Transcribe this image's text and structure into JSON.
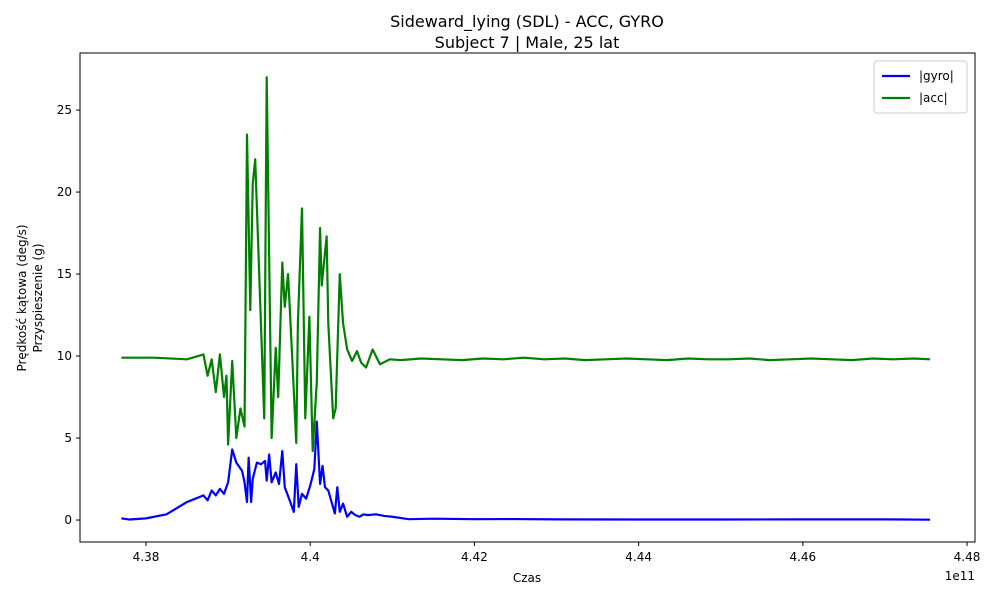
{
  "chart_data": {
    "type": "line",
    "title": "Sideward_lying (SDL) - ACC, GYRO",
    "subtitle": "Subject 7 | Male, 25 lat",
    "xlabel": "Czas",
    "x_offset_label": "1e11",
    "ylabel": [
      "Prędkość kątowa (deg/s)",
      "Przyspieszenie (g)"
    ],
    "xlim": [
      4.37196,
      4.48097
    ],
    "xticks": [
      4.38,
      4.4,
      4.42,
      4.44,
      4.46,
      4.48
    ],
    "ylim": [
      -1.34,
      28.48
    ],
    "yticks": [
      0,
      5,
      10,
      15,
      20,
      25
    ],
    "legend": "upper right",
    "series": [
      {
        "name": "|gyro|",
        "color": "#0000ff",
        "x": [
          4.377,
          4.378,
          4.38,
          4.3825,
          4.385,
          4.387,
          4.3875,
          4.388,
          4.3885,
          4.389,
          4.3895,
          4.39,
          4.3905,
          4.391,
          4.3917,
          4.392,
          4.3923,
          4.3925,
          4.3928,
          4.393,
          4.3935,
          4.394,
          4.3945,
          4.3947,
          4.395,
          4.3953,
          4.3958,
          4.3962,
          4.3966,
          4.3969,
          4.3975,
          4.398,
          4.3983,
          4.3986,
          4.399,
          4.3995,
          4.4,
          4.4005,
          4.4008,
          4.4012,
          4.4015,
          4.4018,
          4.4022,
          4.4026,
          4.403,
          4.4033,
          4.4036,
          4.404,
          4.4045,
          4.405,
          4.4055,
          4.406,
          4.4065,
          4.407,
          4.408,
          4.409,
          4.41,
          4.412,
          4.415,
          4.42,
          4.425,
          4.43,
          4.44,
          4.45,
          4.46,
          4.47,
          4.4755
        ],
        "values": [
          0.1,
          0.03,
          0.1,
          0.35,
          1.1,
          1.5,
          1.2,
          1.8,
          1.5,
          1.9,
          1.6,
          2.3,
          4.3,
          3.5,
          3.0,
          2.3,
          1.1,
          3.8,
          1.1,
          2.5,
          3.5,
          3.4,
          3.6,
          2.4,
          4.0,
          2.3,
          2.9,
          2.2,
          4.2,
          2.0,
          1.2,
          0.5,
          3.4,
          0.8,
          1.6,
          1.3,
          2.1,
          3.1,
          6.0,
          2.2,
          3.3,
          2.0,
          1.8,
          1.1,
          0.4,
          2.0,
          0.5,
          1.0,
          0.2,
          0.5,
          0.3,
          0.2,
          0.35,
          0.3,
          0.35,
          0.25,
          0.2,
          0.05,
          0.08,
          0.05,
          0.06,
          0.04,
          0.03,
          0.03,
          0.04,
          0.04,
          0.02
        ]
      },
      {
        "name": "|acc|",
        "color": "#008000",
        "x": [
          4.377,
          4.381,
          4.385,
          4.387,
          4.3875,
          4.388,
          4.3885,
          4.389,
          4.3895,
          4.3898,
          4.39,
          4.3905,
          4.391,
          4.3915,
          4.392,
          4.3923,
          4.3927,
          4.393,
          4.3933,
          4.3944,
          4.3947,
          4.3953,
          4.3958,
          4.3961,
          4.3966,
          4.3969,
          4.3973,
          4.3978,
          4.3983,
          4.3985,
          4.399,
          4.3994,
          4.3999,
          4.4003,
          4.4008,
          4.4012,
          4.4014,
          4.402,
          4.4022,
          4.4028,
          4.4031,
          4.4036,
          4.404,
          4.4045,
          4.4051,
          4.4057,
          4.4062,
          4.4068,
          4.4076,
          4.4085,
          4.4097,
          4.411,
          4.4135,
          4.416,
          4.4185,
          4.421,
          4.4235,
          4.426,
          4.4285,
          4.431,
          4.4335,
          4.436,
          4.4385,
          4.441,
          4.4435,
          4.446,
          4.4485,
          4.451,
          4.4535,
          4.456,
          4.4585,
          4.461,
          4.4635,
          4.466,
          4.4685,
          4.471,
          4.4735,
          4.4755
        ],
        "values": [
          9.9,
          9.9,
          9.8,
          10.1,
          8.8,
          9.8,
          7.8,
          10.1,
          7.5,
          8.8,
          4.6,
          9.7,
          5.0,
          6.8,
          5.7,
          23.5,
          12.8,
          20.5,
          22.0,
          6.2,
          27.0,
          5.0,
          10.5,
          7.5,
          15.7,
          13.0,
          15.0,
          10.0,
          4.7,
          12.0,
          19.0,
          6.2,
          12.4,
          4.2,
          8.4,
          17.8,
          14.3,
          17.3,
          12.0,
          6.2,
          6.8,
          15.0,
          12.0,
          10.4,
          9.7,
          10.3,
          9.6,
          9.3,
          10.4,
          9.5,
          9.8,
          9.75,
          9.85,
          9.8,
          9.75,
          9.85,
          9.8,
          9.9,
          9.8,
          9.85,
          9.75,
          9.8,
          9.85,
          9.8,
          9.75,
          9.85,
          9.8,
          9.8,
          9.85,
          9.75,
          9.8,
          9.85,
          9.8,
          9.75,
          9.85,
          9.8,
          9.85,
          9.8
        ]
      }
    ]
  }
}
